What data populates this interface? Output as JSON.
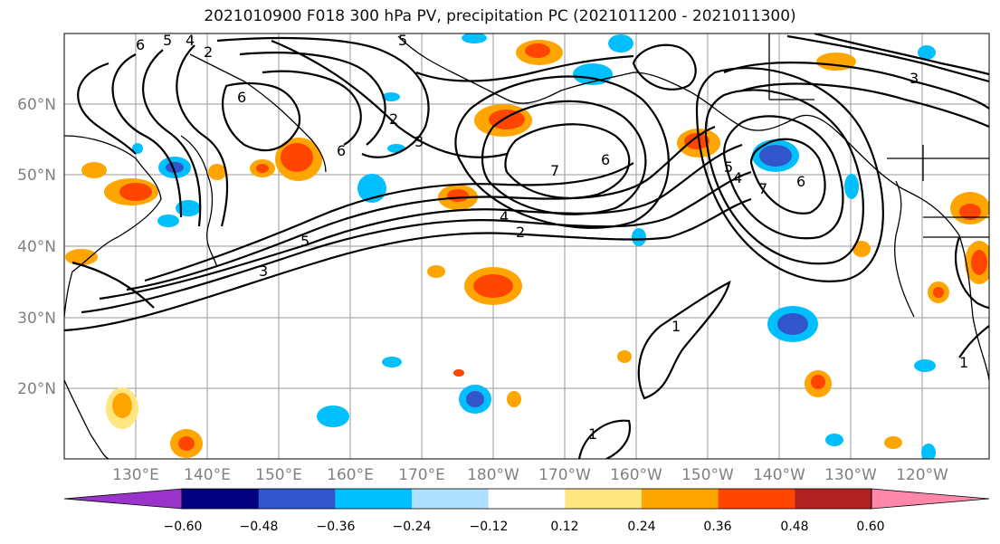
{
  "title": "2021010900 F018 300 hPa PV, precipitation PC (2021011200 - 2021011300)",
  "lon_labels": [
    "130°E",
    "140°E",
    "150°E",
    "160°E",
    "170°E",
    "180°W",
    "170°W",
    "160°W",
    "150°W",
    "140°W",
    "130°W",
    "120°W"
  ],
  "lat_labels": [
    "60°N",
    "50°N",
    "40°N",
    "30°N",
    "20°N"
  ],
  "colorbar": {
    "colors": [
      "#9933cc",
      "#000080",
      "#3355cc",
      "#00bfff",
      "#b0e0ff",
      "#ffffff",
      "#ffe680",
      "#ffa500",
      "#ff4500",
      "#b22222",
      "#ff88aa"
    ],
    "tick_labels": [
      "−0.60",
      "−0.48",
      "−0.36",
      "−0.24",
      "−0.12",
      "0.12",
      "0.24",
      "0.36",
      "0.48",
      "0.60"
    ]
  },
  "contour_labels": [
    "6",
    "5",
    "4",
    "2",
    "6",
    "2",
    "3",
    "6",
    "3",
    "7",
    "6",
    "4",
    "2",
    "5",
    "3",
    "5",
    "7",
    "6",
    "5",
    "4",
    "1",
    "1",
    "1"
  ],
  "colors": {
    "land": "#000000",
    "grid": "#999999",
    "axis_label": "#808080"
  }
}
